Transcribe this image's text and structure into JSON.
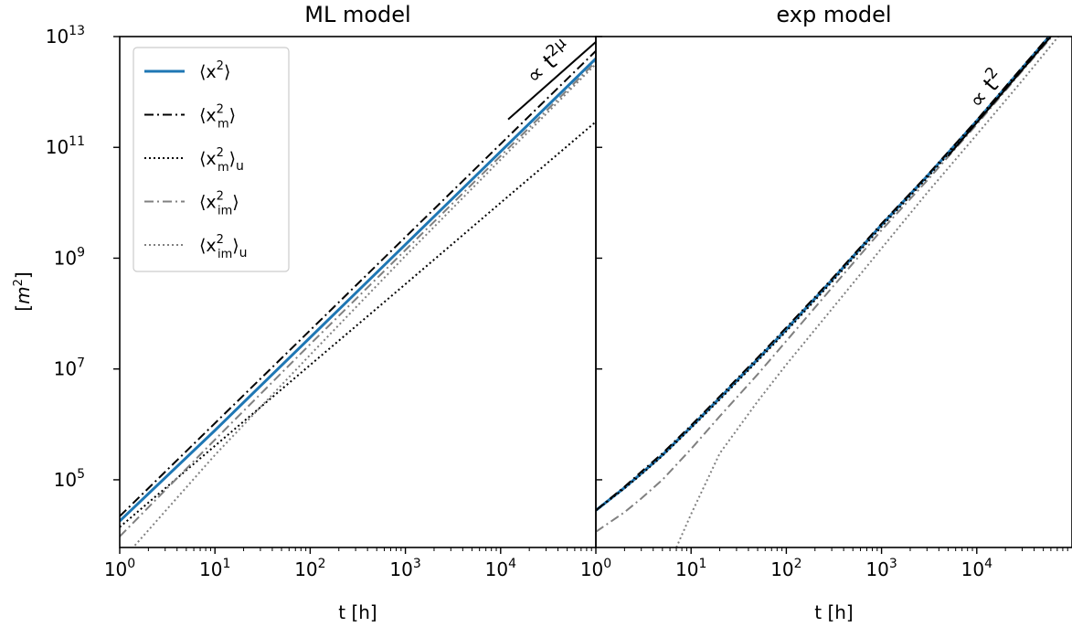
{
  "chart_data": [
    {
      "type": "line",
      "title": "ML model",
      "xlabel": "t [h]",
      "ylabel": "[m²]",
      "xscale": "log",
      "yscale": "log",
      "xlim": [
        1,
        100000
      ],
      "ylim": [
        6000,
        10000000000000
      ],
      "xticks": [
        {
          "value": 1,
          "base": "10",
          "exp": "0"
        },
        {
          "value": 10,
          "base": "10",
          "exp": "1"
        },
        {
          "value": 100,
          "base": "10",
          "exp": "2"
        },
        {
          "value": 1000,
          "base": "10",
          "exp": "3"
        },
        {
          "value": 10000,
          "base": "10",
          "exp": "4"
        }
      ],
      "yticks": [
        {
          "value": 100000,
          "base": "10",
          "exp": "5"
        },
        {
          "value": 10000000,
          "base": "10",
          "exp": "7"
        },
        {
          "value": 1000000000,
          "base": "10",
          "exp": "9"
        },
        {
          "value": 100000000000,
          "base": "10",
          "exp": "11"
        },
        {
          "value": 10000000000000,
          "base": "10",
          "exp": "13"
        }
      ],
      "legend": {
        "position": "upper-left",
        "entries": [
          {
            "series": 0,
            "base": "⟨x",
            "sup": "2",
            "sub": "",
            "close": "⟩",
            "tail": ""
          },
          {
            "series": 1,
            "base": "⟨x",
            "sup": "2",
            "sub": "m",
            "close": "⟩",
            "tail": ""
          },
          {
            "series": 2,
            "base": "⟨x",
            "sup": "2",
            "sub": "m",
            "close": "⟩",
            "tail": "u"
          },
          {
            "series": 3,
            "base": "⟨x",
            "sup": "2",
            "sub": "im",
            "close": "⟩",
            "tail": ""
          },
          {
            "series": 4,
            "base": "⟨x",
            "sup": "2",
            "sub": "im",
            "close": "⟩",
            "tail": "u"
          }
        ]
      },
      "series": [
        {
          "name": "⟨x²⟩",
          "color": "#1f77b4",
          "style": "solid",
          "x": [
            1,
            10,
            100,
            1000,
            10000,
            100000
          ],
          "y": [
            18000,
            780000,
            37000000,
            1760000000,
            84000000000,
            4000000000000
          ]
        },
        {
          "name": "⟨x²_m⟩",
          "color": "#000000",
          "style": "dashdot",
          "x": [
            1,
            10,
            100,
            1000,
            10000,
            100000
          ],
          "y": [
            22000,
            1050000,
            50000000,
            2400000000,
            115000000000,
            5500000000000
          ]
        },
        {
          "name": "⟨x²_m⟩_u",
          "color": "#000000",
          "style": "dotted",
          "x": [
            1,
            10,
            100,
            1000,
            10000,
            100000
          ],
          "y": [
            14000,
            410000,
            11800000,
            340000000,
            10000000000,
            290000000000
          ]
        },
        {
          "name": "⟨x²_im⟩",
          "color": "#808080",
          "style": "dashdot",
          "x": [
            1,
            10,
            100,
            1000,
            10000,
            100000
          ],
          "y": [
            9500,
            530000,
            28000000,
            1400000000,
            70000000000,
            3500000000000
          ]
        },
        {
          "name": "⟨x²_im⟩_u",
          "color": "#808080",
          "style": "dotted",
          "x": [
            1,
            10,
            100,
            1000,
            10000,
            100000
          ],
          "y": [
            3200,
            280000,
            18000000,
            1100000000,
            60000000000,
            3200000000000
          ]
        }
      ],
      "annotation": {
        "text": "∝ t",
        "sup": "2μ",
        "x": [
          12000,
          100000
        ],
        "y": [
          320000000000,
          8000000000000
        ]
      }
    },
    {
      "type": "line",
      "title": "exp model",
      "xlabel": "t [h]",
      "xscale": "log",
      "yscale": "log",
      "xlim": [
        1,
        100000
      ],
      "ylim": [
        6000,
        10000000000000
      ],
      "xticks": [
        {
          "value": 1,
          "base": "10",
          "exp": "0"
        },
        {
          "value": 10,
          "base": "10",
          "exp": "1"
        },
        {
          "value": 100,
          "base": "10",
          "exp": "2"
        },
        {
          "value": 1000,
          "base": "10",
          "exp": "3"
        },
        {
          "value": 10000,
          "base": "10",
          "exp": "4"
        }
      ],
      "series": [
        {
          "name": "⟨x²⟩",
          "color": "#1f77b4",
          "style": "solid",
          "x": [
            1,
            2,
            3,
            5,
            10,
            20,
            50,
            100,
            300,
            1000,
            3000,
            10000,
            30000,
            100000
          ],
          "y": [
            28000,
            72000,
            130000,
            280000,
            900000,
            3000000,
            15000000,
            52000000,
            400000000,
            4000000000,
            30000000000,
            300000000000,
            2700000000000,
            30000000000000
          ]
        },
        {
          "name": "⟨x²_m⟩",
          "color": "#000000",
          "style": "dashdot",
          "x": [
            1,
            2,
            3,
            5,
            10,
            20,
            50,
            100,
            300,
            1000,
            3000,
            10000,
            30000,
            100000
          ],
          "y": [
            28000,
            75000,
            140000,
            300000,
            960000,
            3200000,
            16000000,
            56000000,
            420000000,
            4200000000,
            31000000000,
            310000000000,
            2800000000000,
            31000000000000
          ]
        },
        {
          "name": "⟨x²_m⟩_u",
          "color": "#000000",
          "style": "dotted",
          "x": [
            1,
            2,
            3,
            5,
            10,
            20,
            50,
            100,
            300,
            1000,
            3000,
            10000,
            30000,
            100000
          ],
          "y": [
            28000,
            70000,
            125000,
            270000,
            860000,
            2800000,
            14000000,
            48000000,
            370000000,
            3700000000,
            28000000000,
            280000000000,
            2500000000000,
            28000000000000
          ]
        },
        {
          "name": "⟨x²_im⟩",
          "color": "#808080",
          "style": "dashdot",
          "x": [
            1,
            2,
            3,
            5,
            10,
            20,
            50,
            100,
            300,
            1000,
            3000,
            10000,
            30000,
            100000
          ],
          "y": [
            11500,
            26000,
            46000,
            100000,
            360000,
            1400000,
            8000000,
            32000000,
            290000000,
            3200000000,
            25000000000,
            260000000000,
            2400000000000,
            26000000000000
          ]
        },
        {
          "name": "⟨x²_im⟩_u",
          "color": "#808080",
          "style": "dotted",
          "x": [
            7,
            10,
            20,
            50,
            100,
            300,
            1000,
            3000,
            10000,
            30000,
            100000
          ],
          "y": [
            6000,
            24000,
            300000,
            2600000,
            12000000,
            120000000,
            1500000000,
            15000000000,
            170000000000,
            1600000000000,
            20000000000000
          ]
        }
      ],
      "annotation": {
        "text": "∝ t",
        "sup": "2",
        "x": [
          5000,
          60000
        ],
        "y": [
          70000000000,
          10000000000000
        ]
      }
    }
  ]
}
